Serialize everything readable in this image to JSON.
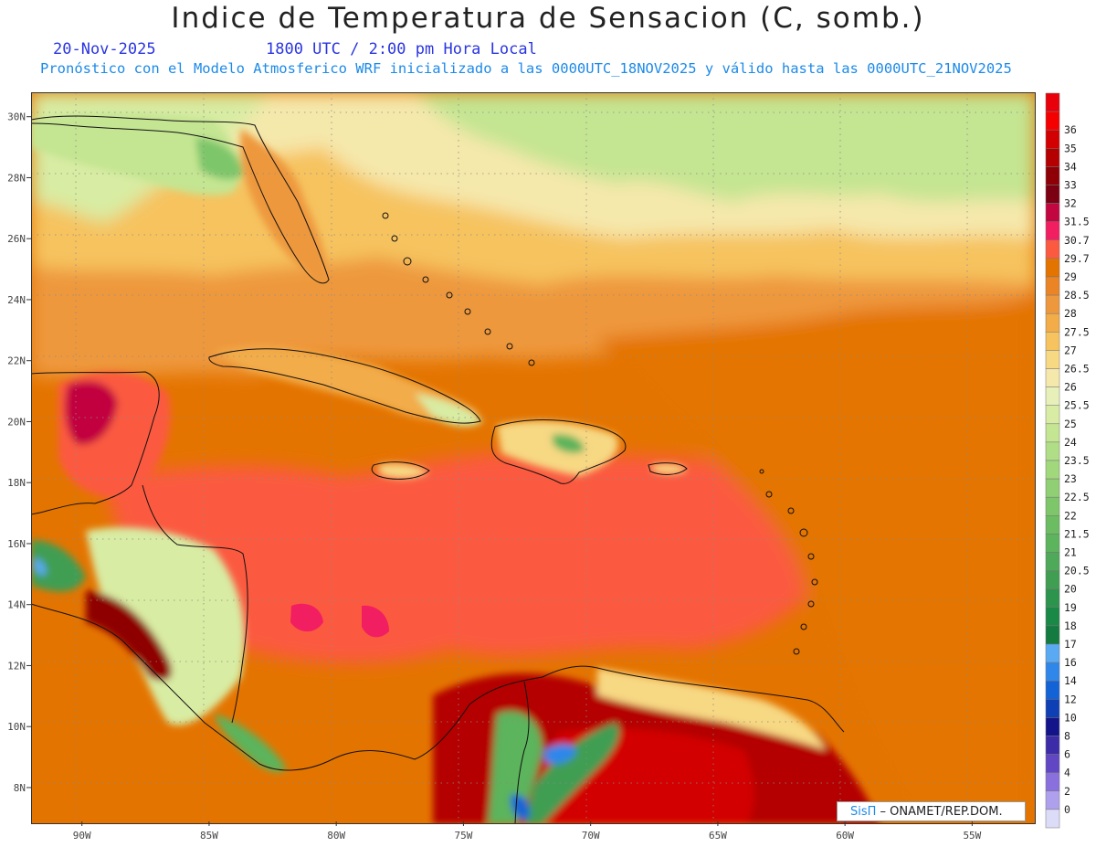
{
  "title": "Indice de Temperatura de Sensacion (C, somb.)",
  "subtitle": {
    "date": "20-Nov-2025",
    "time": "1800 UTC / 2:00 pm Hora Local",
    "model": "Pronóstico con el Modelo Atmosferico WRF inicializado a las 0000UTC_18NOV2025 y válido hasta las  0000UTC_21NOV2025"
  },
  "credit": {
    "brand": "SisΠ",
    "org": " – ONAMET/REP.DOM."
  },
  "map": {
    "lon_range": [
      -92,
      -52.5
    ],
    "lat_range": [
      6.8,
      30.8
    ],
    "lon_ticks": [
      {
        "value": -90,
        "label": "90W"
      },
      {
        "value": -85,
        "label": "85W"
      },
      {
        "value": -80,
        "label": "80W"
      },
      {
        "value": -75,
        "label": "75W"
      },
      {
        "value": -70,
        "label": "70W"
      },
      {
        "value": -65,
        "label": "65W"
      },
      {
        "value": -60,
        "label": "60W"
      },
      {
        "value": -55,
        "label": "55W"
      }
    ],
    "lat_ticks": [
      {
        "value": 8,
        "label": "8N"
      },
      {
        "value": 10,
        "label": "10N"
      },
      {
        "value": 12,
        "label": "12N"
      },
      {
        "value": 14,
        "label": "14N"
      },
      {
        "value": 16,
        "label": "16N"
      },
      {
        "value": 18,
        "label": "18N"
      },
      {
        "value": 20,
        "label": "20N"
      },
      {
        "value": 22,
        "label": "22N"
      },
      {
        "value": 24,
        "label": "24N"
      },
      {
        "value": 26,
        "label": "26N"
      },
      {
        "value": 28,
        "label": "28N"
      },
      {
        "value": 30,
        "label": "30N"
      }
    ],
    "grid": true
  },
  "colorbar": [
    {
      "label": "",
      "color": "#e8000a"
    },
    {
      "label": "36",
      "color": "#f50000"
    },
    {
      "label": "35",
      "color": "#d20000"
    },
    {
      "label": "34",
      "color": "#b40000"
    },
    {
      "label": "33",
      "color": "#8e0006"
    },
    {
      "label": "32",
      "color": "#7a0012"
    },
    {
      "label": "31.5",
      "color": "#c2063f"
    },
    {
      "label": "30.7",
      "color": "#f21e62"
    },
    {
      "label": "29.7",
      "color": "#fb5a41"
    },
    {
      "label": "29",
      "color": "#e47400"
    },
    {
      "label": "28.5",
      "color": "#ea8425"
    },
    {
      "label": "28",
      "color": "#ee983d"
    },
    {
      "label": "27.5",
      "color": "#f2ac48"
    },
    {
      "label": "27",
      "color": "#f6c35e"
    },
    {
      "label": "26.5",
      "color": "#f7d883"
    },
    {
      "label": "26",
      "color": "#f5e8ab"
    },
    {
      "label": "25.5",
      "color": "#e7f0b8"
    },
    {
      "label": "25",
      "color": "#d8eca3"
    },
    {
      "label": "24",
      "color": "#c4e592"
    },
    {
      "label": "23.5",
      "color": "#b0de86"
    },
    {
      "label": "23",
      "color": "#a2d87c"
    },
    {
      "label": "22.5",
      "color": "#90cf73"
    },
    {
      "label": "22",
      "color": "#7ec66a"
    },
    {
      "label": "21.5",
      "color": "#6cbd62"
    },
    {
      "label": "21",
      "color": "#5cb45c"
    },
    {
      "label": "20.5",
      "color": "#4ea958"
    },
    {
      "label": "20",
      "color": "#3f9e52"
    },
    {
      "label": "19",
      "color": "#2c944c"
    },
    {
      "label": "18",
      "color": "#1a8846"
    },
    {
      "label": "17",
      "color": "#137a40"
    },
    {
      "label": "16",
      "color": "#5aaaf3"
    },
    {
      "label": "14",
      "color": "#2f87ea"
    },
    {
      "label": "12",
      "color": "#1463d6"
    },
    {
      "label": "10",
      "color": "#0f3fb4"
    },
    {
      "label": "8",
      "color": "#14148a"
    },
    {
      "label": "6",
      "color": "#3c2ca8"
    },
    {
      "label": "4",
      "color": "#6247c4"
    },
    {
      "label": "2",
      "color": "#8a70dc"
    },
    {
      "label": "0",
      "color": "#afa0ee"
    },
    {
      "label": "",
      "color": "#dcdcf8"
    }
  ]
}
